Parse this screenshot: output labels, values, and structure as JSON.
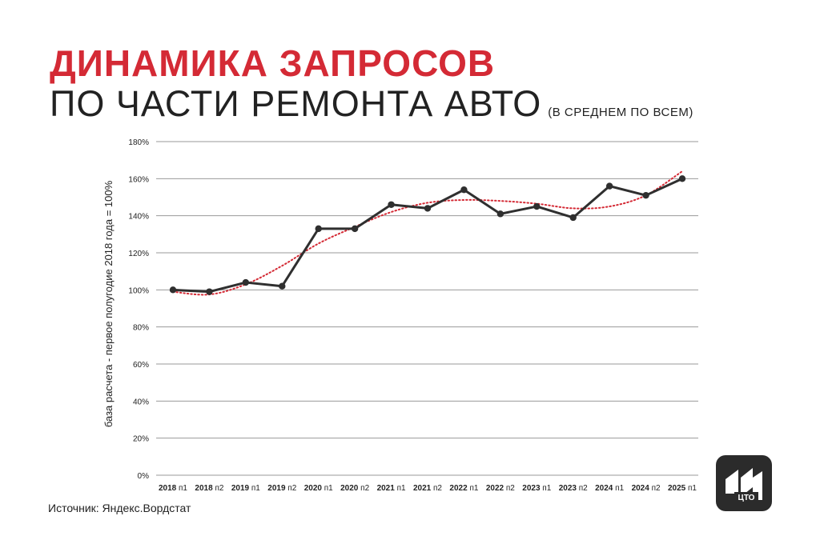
{
  "header": {
    "title_line1": "ДИНАМИКА ЗАПРОСОВ",
    "title_line2": "ПО ЧАСТИ РЕМОНТА АВТО",
    "title_note": "(В СРЕДНЕМ ПО ВСЕМ)"
  },
  "source": "Источник: Яндекс.Вордстат",
  "logo": {
    "text": "ЦТО",
    "icon": "cto-logo-icon"
  },
  "colors": {
    "title_accent": "#d42a35",
    "line": "#2f2f2f",
    "trend": "#d42a35",
    "grid": "#9a9a9a",
    "logo_bg": "#2b2b2b"
  },
  "chart_data": {
    "type": "line",
    "ylabel": "база расчета - первое полугодие 2018 года = 100%",
    "ylim": [
      0,
      180
    ],
    "y_ticks": [
      "0%",
      "20%",
      "40%",
      "60%",
      "80%",
      "100%",
      "120%",
      "140%",
      "160%",
      "180%"
    ],
    "grid": true,
    "categories": [
      {
        "year": "2018",
        "half": "п1"
      },
      {
        "year": "2018",
        "half": "п2"
      },
      {
        "year": "2019",
        "half": "п1"
      },
      {
        "year": "2019",
        "half": "п2"
      },
      {
        "year": "2020",
        "half": "п1"
      },
      {
        "year": "2020",
        "half": "п2"
      },
      {
        "year": "2021",
        "half": "п1"
      },
      {
        "year": "2021",
        "half": "п2"
      },
      {
        "year": "2022",
        "half": "п1"
      },
      {
        "year": "2022",
        "half": "п2"
      },
      {
        "year": "2023",
        "half": "п1"
      },
      {
        "year": "2023",
        "half": "п2"
      },
      {
        "year": "2024",
        "half": "п1"
      },
      {
        "year": "2024",
        "half": "п2"
      },
      {
        "year": "2025",
        "half": "п1"
      }
    ],
    "series": [
      {
        "values": [
          100,
          99,
          104,
          102,
          133,
          133,
          146,
          144,
          154,
          141,
          145,
          139,
          156,
          151,
          160
        ],
        "style": "solid-with-markers"
      },
      {
        "values": [
          99,
          97.5,
          103,
          113,
          125,
          134,
          142,
          147,
          148.5,
          148,
          146.5,
          144,
          145,
          151,
          164
        ],
        "style": "dotted-trend"
      }
    ]
  }
}
